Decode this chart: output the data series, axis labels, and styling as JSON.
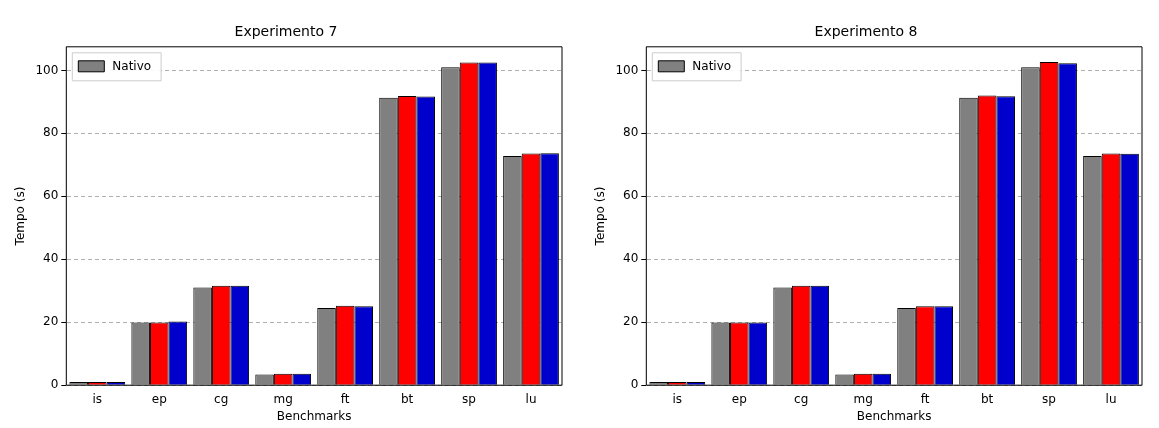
{
  "chart_data": [
    {
      "type": "bar",
      "title": "Experimento 7",
      "xlabel": "Benchmarks",
      "ylabel": "Tempo (s)",
      "categories": [
        "is",
        "ep",
        "cg",
        "mg",
        "ft",
        "bt",
        "sp",
        "lu"
      ],
      "series": [
        {
          "name": "Nativo",
          "color": "#808080",
          "values": [
            1,
            19.9,
            31,
            3.4,
            24.5,
            91.3,
            101,
            72.8
          ]
        },
        {
          "color": "#ff0000",
          "values": [
            1,
            19.9,
            31.6,
            3.6,
            25.2,
            91.9,
            102.5,
            73.6
          ]
        },
        {
          "color": "#0000cc",
          "values": [
            1,
            20.2,
            31.6,
            3.6,
            25.1,
            91.7,
            102.5,
            73.7
          ]
        }
      ],
      "ylim": [
        0,
        107.5
      ],
      "yticks": [
        0,
        20,
        40,
        60,
        80,
        100
      ],
      "grid": "y",
      "legend": "top left"
    },
    {
      "type": "bar",
      "title": "Experimento 8",
      "xlabel": "Benchmarks",
      "ylabel": "Tempo (s)",
      "categories": [
        "is",
        "ep",
        "cg",
        "mg",
        "ft",
        "bt",
        "sp",
        "lu"
      ],
      "series": [
        {
          "name": "Nativo",
          "color": "#808080",
          "values": [
            1,
            19.9,
            31,
            3.4,
            24.5,
            91.3,
            101,
            72.8
          ]
        },
        {
          "color": "#ff0000",
          "values": [
            1,
            19.9,
            31.6,
            3.6,
            25.1,
            92,
            102.7,
            73.6
          ]
        },
        {
          "color": "#0000cc",
          "values": [
            1,
            19.9,
            31.6,
            3.6,
            25.1,
            91.8,
            102.3,
            73.5
          ]
        }
      ],
      "ylim": [
        0,
        107.5
      ],
      "yticks": [
        0,
        20,
        40,
        60,
        80,
        100
      ],
      "grid": "y",
      "legend": "top left"
    }
  ]
}
